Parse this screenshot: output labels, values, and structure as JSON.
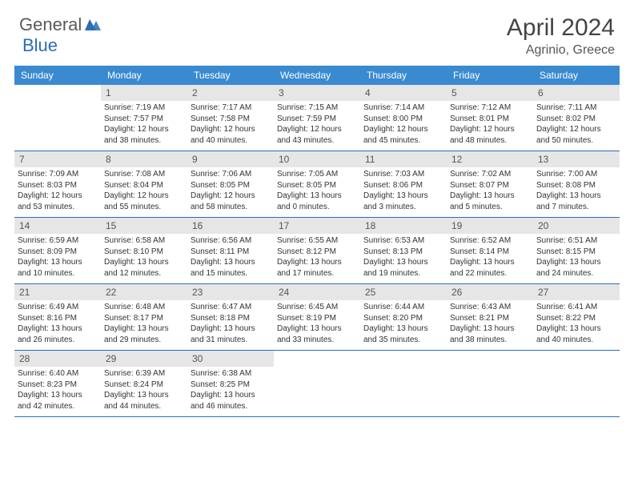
{
  "logo": {
    "general": "General",
    "blue": "Blue"
  },
  "title": "April 2024",
  "location": "Agrinio, Greece",
  "colors": {
    "header_bg": "#3a8ad0",
    "header_text": "#ffffff",
    "daynum_bg": "#e6e6e6",
    "daynum_text": "#555555",
    "border": "#2a6db8",
    "accent": "#2a6db8"
  },
  "day_names": [
    "Sunday",
    "Monday",
    "Tuesday",
    "Wednesday",
    "Thursday",
    "Friday",
    "Saturday"
  ],
  "weeks": [
    [
      null,
      {
        "n": "1",
        "sr": "Sunrise: 7:19 AM",
        "ss": "Sunset: 7:57 PM",
        "dl1": "Daylight: 12 hours",
        "dl2": "and 38 minutes."
      },
      {
        "n": "2",
        "sr": "Sunrise: 7:17 AM",
        "ss": "Sunset: 7:58 PM",
        "dl1": "Daylight: 12 hours",
        "dl2": "and 40 minutes."
      },
      {
        "n": "3",
        "sr": "Sunrise: 7:15 AM",
        "ss": "Sunset: 7:59 PM",
        "dl1": "Daylight: 12 hours",
        "dl2": "and 43 minutes."
      },
      {
        "n": "4",
        "sr": "Sunrise: 7:14 AM",
        "ss": "Sunset: 8:00 PM",
        "dl1": "Daylight: 12 hours",
        "dl2": "and 45 minutes."
      },
      {
        "n": "5",
        "sr": "Sunrise: 7:12 AM",
        "ss": "Sunset: 8:01 PM",
        "dl1": "Daylight: 12 hours",
        "dl2": "and 48 minutes."
      },
      {
        "n": "6",
        "sr": "Sunrise: 7:11 AM",
        "ss": "Sunset: 8:02 PM",
        "dl1": "Daylight: 12 hours",
        "dl2": "and 50 minutes."
      }
    ],
    [
      {
        "n": "7",
        "sr": "Sunrise: 7:09 AM",
        "ss": "Sunset: 8:03 PM",
        "dl1": "Daylight: 12 hours",
        "dl2": "and 53 minutes."
      },
      {
        "n": "8",
        "sr": "Sunrise: 7:08 AM",
        "ss": "Sunset: 8:04 PM",
        "dl1": "Daylight: 12 hours",
        "dl2": "and 55 minutes."
      },
      {
        "n": "9",
        "sr": "Sunrise: 7:06 AM",
        "ss": "Sunset: 8:05 PM",
        "dl1": "Daylight: 12 hours",
        "dl2": "and 58 minutes."
      },
      {
        "n": "10",
        "sr": "Sunrise: 7:05 AM",
        "ss": "Sunset: 8:05 PM",
        "dl1": "Daylight: 13 hours",
        "dl2": "and 0 minutes."
      },
      {
        "n": "11",
        "sr": "Sunrise: 7:03 AM",
        "ss": "Sunset: 8:06 PM",
        "dl1": "Daylight: 13 hours",
        "dl2": "and 3 minutes."
      },
      {
        "n": "12",
        "sr": "Sunrise: 7:02 AM",
        "ss": "Sunset: 8:07 PM",
        "dl1": "Daylight: 13 hours",
        "dl2": "and 5 minutes."
      },
      {
        "n": "13",
        "sr": "Sunrise: 7:00 AM",
        "ss": "Sunset: 8:08 PM",
        "dl1": "Daylight: 13 hours",
        "dl2": "and 7 minutes."
      }
    ],
    [
      {
        "n": "14",
        "sr": "Sunrise: 6:59 AM",
        "ss": "Sunset: 8:09 PM",
        "dl1": "Daylight: 13 hours",
        "dl2": "and 10 minutes."
      },
      {
        "n": "15",
        "sr": "Sunrise: 6:58 AM",
        "ss": "Sunset: 8:10 PM",
        "dl1": "Daylight: 13 hours",
        "dl2": "and 12 minutes."
      },
      {
        "n": "16",
        "sr": "Sunrise: 6:56 AM",
        "ss": "Sunset: 8:11 PM",
        "dl1": "Daylight: 13 hours",
        "dl2": "and 15 minutes."
      },
      {
        "n": "17",
        "sr": "Sunrise: 6:55 AM",
        "ss": "Sunset: 8:12 PM",
        "dl1": "Daylight: 13 hours",
        "dl2": "and 17 minutes."
      },
      {
        "n": "18",
        "sr": "Sunrise: 6:53 AM",
        "ss": "Sunset: 8:13 PM",
        "dl1": "Daylight: 13 hours",
        "dl2": "and 19 minutes."
      },
      {
        "n": "19",
        "sr": "Sunrise: 6:52 AM",
        "ss": "Sunset: 8:14 PM",
        "dl1": "Daylight: 13 hours",
        "dl2": "and 22 minutes."
      },
      {
        "n": "20",
        "sr": "Sunrise: 6:51 AM",
        "ss": "Sunset: 8:15 PM",
        "dl1": "Daylight: 13 hours",
        "dl2": "and 24 minutes."
      }
    ],
    [
      {
        "n": "21",
        "sr": "Sunrise: 6:49 AM",
        "ss": "Sunset: 8:16 PM",
        "dl1": "Daylight: 13 hours",
        "dl2": "and 26 minutes."
      },
      {
        "n": "22",
        "sr": "Sunrise: 6:48 AM",
        "ss": "Sunset: 8:17 PM",
        "dl1": "Daylight: 13 hours",
        "dl2": "and 29 minutes."
      },
      {
        "n": "23",
        "sr": "Sunrise: 6:47 AM",
        "ss": "Sunset: 8:18 PM",
        "dl1": "Daylight: 13 hours",
        "dl2": "and 31 minutes."
      },
      {
        "n": "24",
        "sr": "Sunrise: 6:45 AM",
        "ss": "Sunset: 8:19 PM",
        "dl1": "Daylight: 13 hours",
        "dl2": "and 33 minutes."
      },
      {
        "n": "25",
        "sr": "Sunrise: 6:44 AM",
        "ss": "Sunset: 8:20 PM",
        "dl1": "Daylight: 13 hours",
        "dl2": "and 35 minutes."
      },
      {
        "n": "26",
        "sr": "Sunrise: 6:43 AM",
        "ss": "Sunset: 8:21 PM",
        "dl1": "Daylight: 13 hours",
        "dl2": "and 38 minutes."
      },
      {
        "n": "27",
        "sr": "Sunrise: 6:41 AM",
        "ss": "Sunset: 8:22 PM",
        "dl1": "Daylight: 13 hours",
        "dl2": "and 40 minutes."
      }
    ],
    [
      {
        "n": "28",
        "sr": "Sunrise: 6:40 AM",
        "ss": "Sunset: 8:23 PM",
        "dl1": "Daylight: 13 hours",
        "dl2": "and 42 minutes."
      },
      {
        "n": "29",
        "sr": "Sunrise: 6:39 AM",
        "ss": "Sunset: 8:24 PM",
        "dl1": "Daylight: 13 hours",
        "dl2": "and 44 minutes."
      },
      {
        "n": "30",
        "sr": "Sunrise: 6:38 AM",
        "ss": "Sunset: 8:25 PM",
        "dl1": "Daylight: 13 hours",
        "dl2": "and 46 minutes."
      },
      null,
      null,
      null,
      null
    ]
  ]
}
